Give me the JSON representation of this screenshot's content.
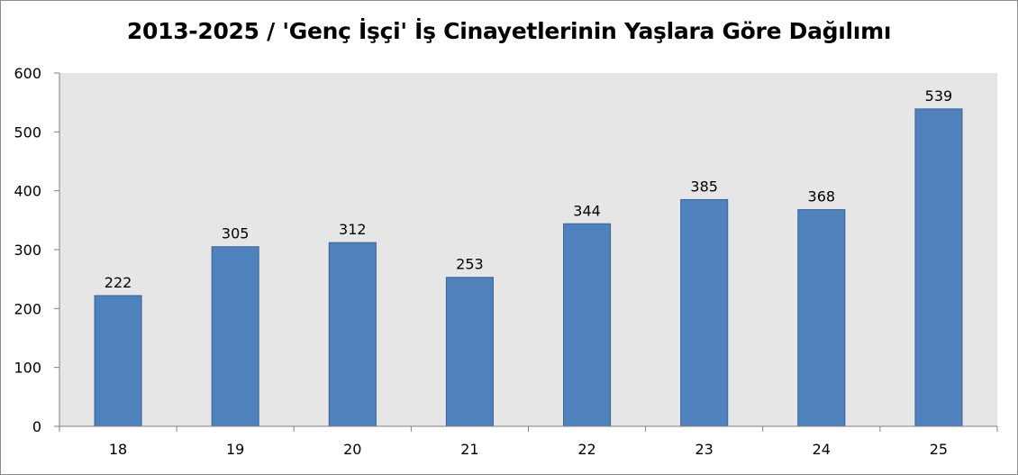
{
  "chart_data": {
    "type": "bar",
    "title": "2013-2025 / 'Genç İşçi' İş Cinayetlerinin Yaşlara Göre Dağılımı",
    "xlabel": "",
    "ylabel": "",
    "categories": [
      "18",
      "19",
      "20",
      "21",
      "22",
      "23",
      "24",
      "25"
    ],
    "values": [
      222,
      305,
      312,
      253,
      344,
      385,
      368,
      539
    ],
    "ylim": [
      0,
      600
    ],
    "yticks": [
      0,
      100,
      200,
      300,
      400,
      500,
      600
    ],
    "grid": false,
    "legend": "none",
    "colors": {
      "bar": "#4f81bd",
      "bar_border": "#3a6596",
      "plot_background": "#e6e6e6",
      "axis": "#808080"
    }
  }
}
